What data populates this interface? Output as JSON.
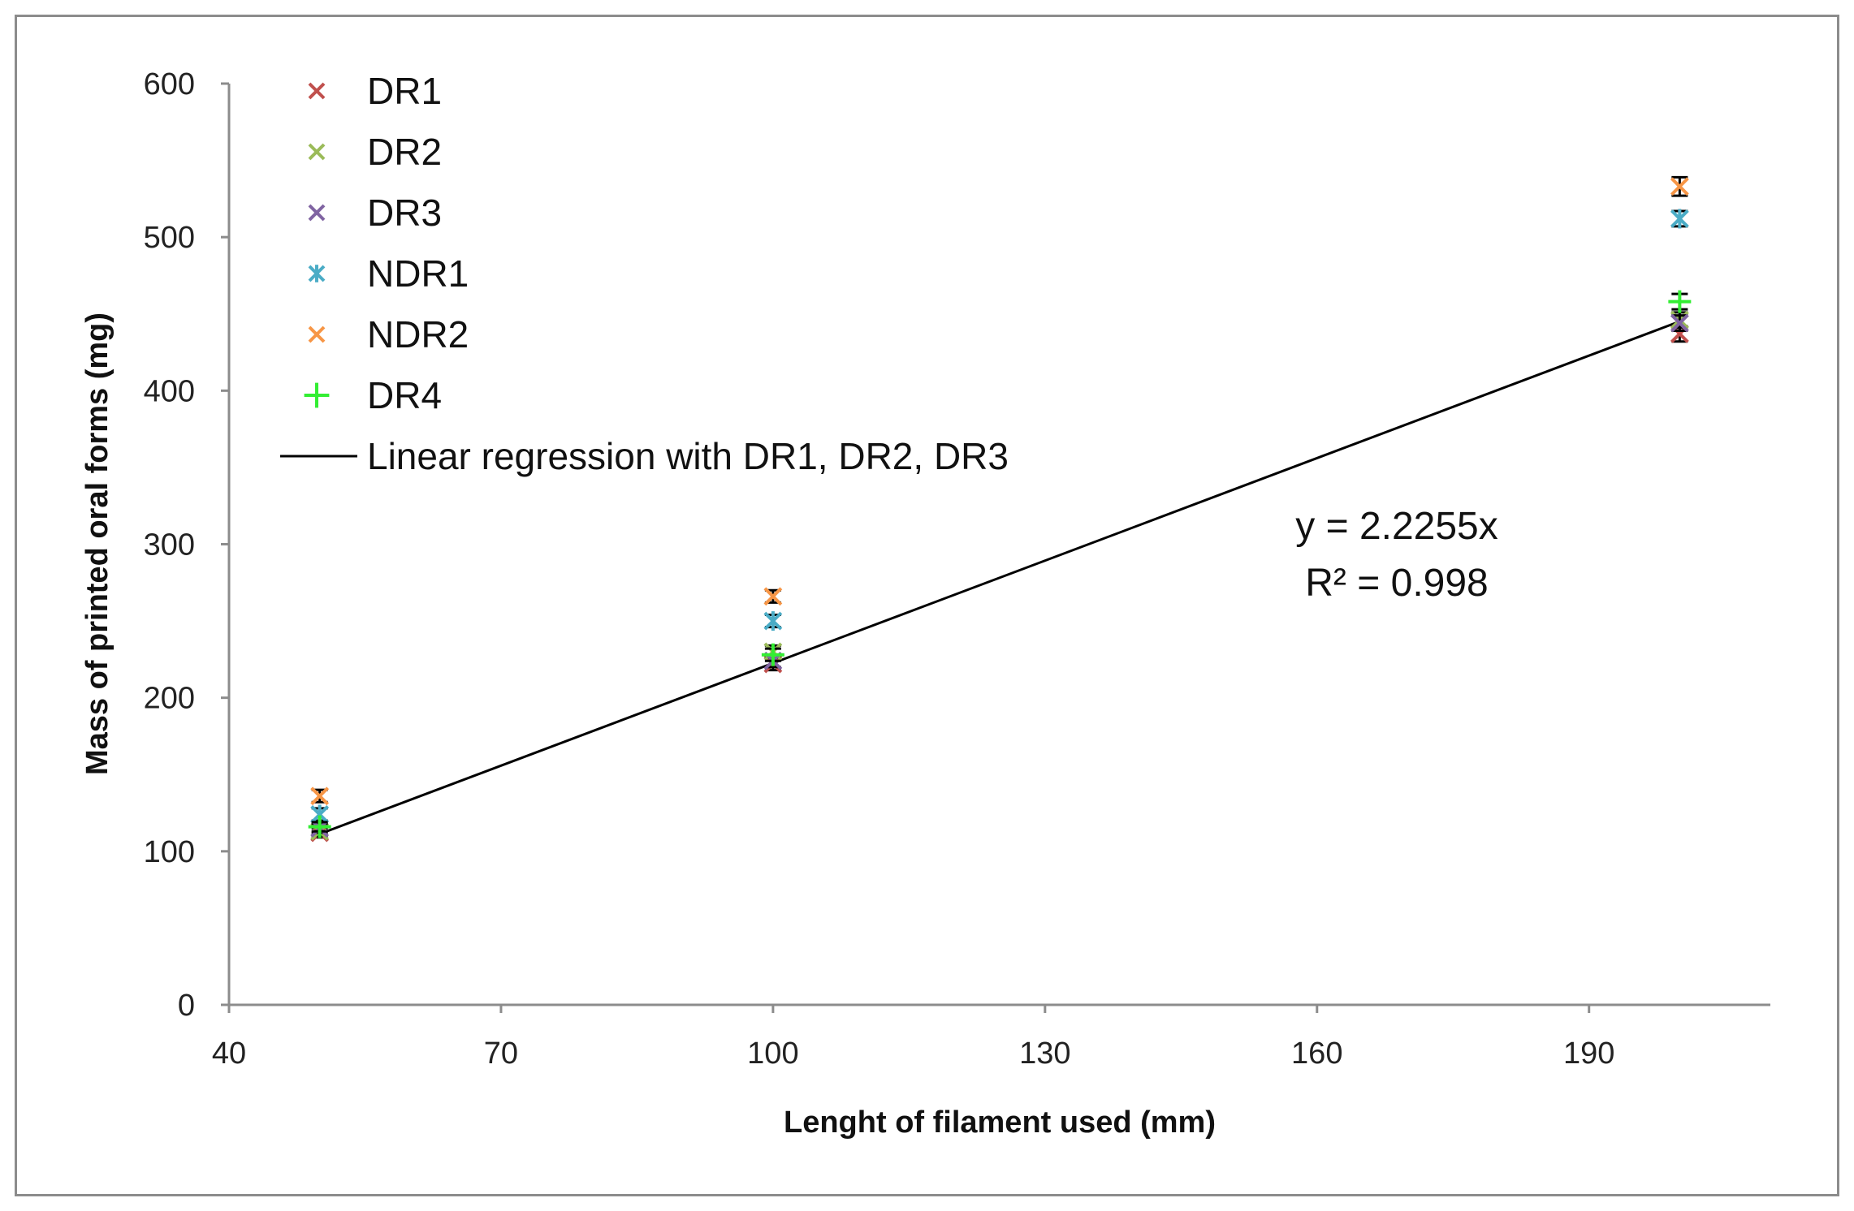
{
  "chart_data": {
    "type": "scatter",
    "xlabel": "Lenght of filament used (mm)",
    "ylabel": "Mass of printed oral forms (mg)",
    "xlim": [
      40,
      210
    ],
    "ylim": [
      0,
      600
    ],
    "xticks": [
      40,
      70,
      100,
      130,
      160,
      190
    ],
    "yticks": [
      0,
      100,
      200,
      300,
      400,
      500,
      600
    ],
    "series": [
      {
        "name": "DR1",
        "marker": "x",
        "color": "#c0504d",
        "x": [
          50,
          100,
          200
        ],
        "y": [
          112,
          222,
          437
        ],
        "err": [
          3,
          4,
          5
        ]
      },
      {
        "name": "DR2",
        "marker": "x",
        "color": "#9bbb59",
        "x": [
          50,
          100,
          200
        ],
        "y": [
          113,
          230,
          446
        ],
        "err": [
          3,
          4,
          5
        ]
      },
      {
        "name": "DR3",
        "marker": "x",
        "color": "#8064a2",
        "x": [
          50,
          100,
          200
        ],
        "y": [
          115,
          224,
          444
        ],
        "err": [
          3,
          4,
          5
        ]
      },
      {
        "name": "NDR1",
        "marker": "asterisk",
        "color": "#4bacc6",
        "x": [
          50,
          100,
          200
        ],
        "y": [
          124,
          250,
          512
        ],
        "err": [
          4,
          4,
          5
        ]
      },
      {
        "name": "NDR2",
        "marker": "x",
        "color": "#f79646",
        "x": [
          50,
          100,
          200
        ],
        "y": [
          136,
          266,
          533
        ],
        "err": [
          4,
          4,
          6
        ]
      },
      {
        "name": "DR4",
        "marker": "plus",
        "color": "#33ee33",
        "x": [
          50,
          100,
          200
        ],
        "y": [
          116,
          228,
          458
        ],
        "err": [
          3,
          4,
          5
        ]
      }
    ],
    "regression": {
      "name": "Linear regression with DR1, DR2, DR3",
      "slope": 2.2255,
      "x_range": [
        50,
        200
      ],
      "color": "#000000"
    },
    "annotation": {
      "equation": "y = 2.2255x",
      "r_squared": "R² = 0.998"
    },
    "legend_position": "top-left"
  }
}
